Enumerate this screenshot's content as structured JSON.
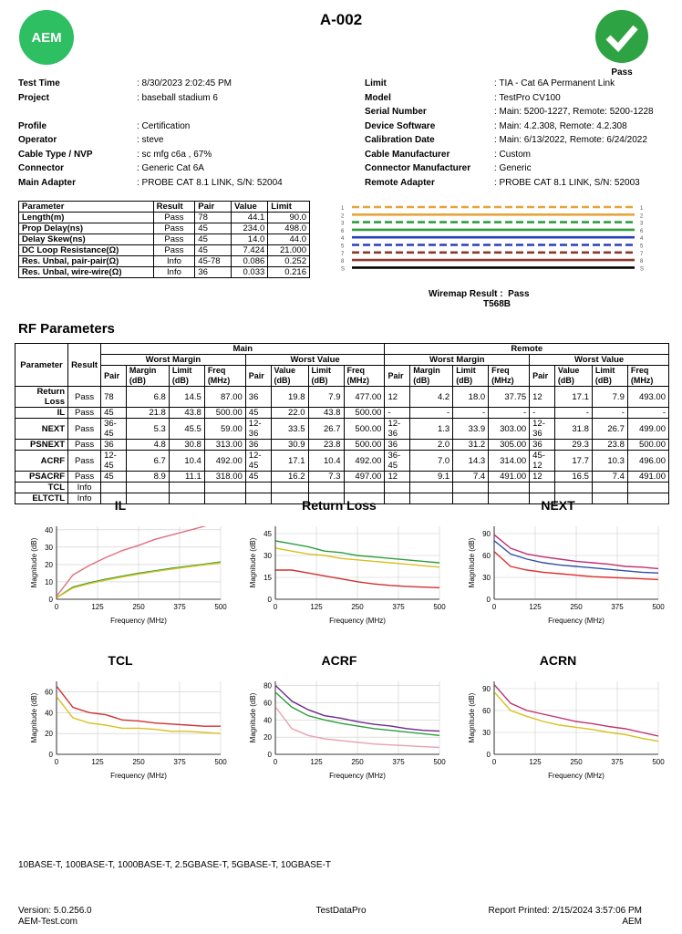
{
  "header": {
    "logo": "AEM",
    "title": "A-002",
    "status": "Pass"
  },
  "info_left": [
    [
      "Test Time",
      ": 8/30/2023 2:02:45 PM"
    ],
    [
      "Project",
      ": baseball stadium 6"
    ],
    [
      "Profile",
      ": Certification"
    ],
    [
      "Operator",
      ": steve"
    ],
    [
      "Cable Type / NVP",
      ": sc mfg c6a , 67%"
    ],
    [
      "Connector",
      ": Generic Cat 6A"
    ],
    [
      "Main Adapter",
      ": PROBE CAT 8.1 LINK, S/N: 52004"
    ]
  ],
  "info_right": [
    [
      "Limit",
      ": TIA - Cat 6A Permanent Link"
    ],
    [
      "Model",
      ": TestPro CV100"
    ],
    [
      "Serial Number",
      ": Main: 5200-1227, Remote: 5200-1228"
    ],
    [
      "Device Software",
      ": Main: 4.2.308, Remote: 4.2.308"
    ],
    [
      "Calibration Date",
      ": Main: 6/13/2022, Remote: 6/24/2022"
    ],
    [
      "Cable Manufacturer",
      ": Custom"
    ],
    [
      "Connector Manufacturer",
      ": Generic"
    ],
    [
      "Remote Adapter",
      ": PROBE CAT 8.1 LINK, S/N: 52003"
    ]
  ],
  "param_table": {
    "headers": [
      "Parameter",
      "Result",
      "Pair",
      "Value",
      "Limit"
    ],
    "rows": [
      [
        "Length(m)",
        "Pass",
        "78",
        "44.1",
        "90.0"
      ],
      [
        "Prop Delay(ns)",
        "Pass",
        "45",
        "234.0",
        "498.0"
      ],
      [
        "Delay Skew(ns)",
        "Pass",
        "45",
        "14.0",
        "44.0"
      ],
      [
        "DC Loop Resistance(Ω)",
        "Pass",
        "45",
        "7.424",
        "21.000"
      ],
      [
        "Res. Unbal, pair-pair(Ω)",
        "Info",
        "45-78",
        "0.086",
        "0.252"
      ],
      [
        "Res. Unbal, wire-wire(Ω)",
        "Info",
        "36",
        "0.033",
        "0.216"
      ]
    ]
  },
  "wiremap": {
    "pins": [
      "1",
      "2",
      "3",
      "6",
      "4",
      "5",
      "7",
      "8",
      "S"
    ],
    "result_label": "Wiremap Result :",
    "result": "Pass",
    "standard": "T568B"
  },
  "rf": {
    "title": "RF Parameters",
    "parameter": "Parameter",
    "result": "Result",
    "groups": [
      "Main",
      "Remote"
    ],
    "subgroups": [
      "Worst Margin",
      "Worst Value"
    ],
    "margin_cols": [
      "Pair",
      "Margin (dB)",
      "Limit (dB)",
      "Freq (MHz)"
    ],
    "value_cols": [
      "Pair",
      "Value (dB)",
      "Limit (dB)",
      "Freq (MHz)"
    ],
    "rows": [
      [
        "Return Loss",
        "Pass",
        "78",
        "6.8",
        "14.5",
        "87.00",
        "36",
        "19.8",
        "7.9",
        "477.00",
        "12",
        "4.2",
        "18.0",
        "37.75",
        "12",
        "17.1",
        "7.9",
        "493.00"
      ],
      [
        "IL",
        "Pass",
        "45",
        "21.8",
        "43.8",
        "500.00",
        "45",
        "22.0",
        "43.8",
        "500.00",
        "-",
        "-",
        "-",
        "-",
        "-",
        "-",
        "-",
        "-"
      ],
      [
        "NEXT",
        "Pass",
        "36-45",
        "5.3",
        "45.5",
        "59.00",
        "12-36",
        "33.5",
        "26.7",
        "500.00",
        "12-36",
        "1.3",
        "33.9",
        "303.00",
        "12-36",
        "31.8",
        "26.7",
        "499.00"
      ],
      [
        "PSNEXT",
        "Pass",
        "36",
        "4.8",
        "30.8",
        "313.00",
        "36",
        "30.9",
        "23.8",
        "500.00",
        "36",
        "2.0",
        "31.2",
        "305.00",
        "36",
        "29.3",
        "23.8",
        "500.00"
      ],
      [
        "ACRF",
        "Pass",
        "12-45",
        "6.7",
        "10.4",
        "492.00",
        "12-45",
        "17.1",
        "10.4",
        "492.00",
        "36-45",
        "7.0",
        "14.3",
        "314.00",
        "45-12",
        "17.7",
        "10.3",
        "496.00"
      ],
      [
        "PSACRF",
        "Pass",
        "45",
        "8.9",
        "11.1",
        "318.00",
        "45",
        "16.2",
        "7.3",
        "497.00",
        "12",
        "9.1",
        "7.4",
        "491.00",
        "12",
        "16.5",
        "7.4",
        "491.00"
      ],
      [
        "TCL",
        "Info",
        null,
        null,
        null,
        null,
        null,
        null,
        null,
        null,
        null,
        null,
        null,
        null,
        null,
        null,
        null,
        null
      ],
      [
        "ELTCTL",
        "Info",
        null,
        null,
        null,
        null,
        null,
        null,
        null,
        null,
        null,
        null,
        null,
        null,
        null,
        null,
        null,
        null
      ]
    ]
  },
  "chart_data": [
    {
      "type": "line",
      "title": "IL",
      "x_label": "Frequency (MHz)",
      "y_label": "Magnitude (dB)",
      "xlim": [
        0,
        500
      ],
      "ylim": [
        0,
        42
      ],
      "xticks": [
        0,
        125,
        250,
        375,
        500
      ],
      "yticks": [
        0,
        10,
        20,
        30,
        40
      ],
      "grid": true,
      "x": [
        1,
        50,
        100,
        150,
        200,
        250,
        300,
        350,
        400,
        450,
        500
      ],
      "series": [
        {
          "color": "#e07080",
          "values": [
            2,
            14,
            19.5,
            24,
            28,
            31,
            34.5,
            37,
            39.5,
            42,
            44
          ]
        },
        {
          "color": "#2e9e3e",
          "values": [
            1,
            7,
            9.5,
            11.5,
            13.3,
            15,
            16.4,
            17.8,
            19,
            20.2,
            21.5
          ]
        },
        {
          "color": "#d8c020",
          "values": [
            1,
            6.5,
            9,
            11,
            12.8,
            14.5,
            16,
            17.3,
            18.6,
            19.8,
            21
          ]
        }
      ]
    },
    {
      "type": "line",
      "title": "Return Loss",
      "x_label": "Frequency (MHz)",
      "y_label": "Magnitude (dB)",
      "xlim": [
        0,
        500
      ],
      "ylim": [
        0,
        50
      ],
      "xticks": [
        0,
        125,
        250,
        375,
        500
      ],
      "yticks": [
        0,
        15,
        30,
        45
      ],
      "grid": true,
      "x": [
        1,
        50,
        100,
        150,
        200,
        250,
        300,
        350,
        400,
        450,
        500
      ],
      "series": [
        {
          "color": "#2e9e3e",
          "values": [
            40,
            38,
            36,
            33,
            32,
            30,
            29,
            28,
            27,
            26,
            25
          ]
        },
        {
          "color": "#d8c020",
          "values": [
            35,
            33,
            31,
            30,
            28,
            27,
            26,
            25,
            24,
            23,
            22
          ]
        },
        {
          "color": "#d03030",
          "values": [
            20,
            20,
            18,
            16,
            14,
            12,
            10.5,
            9.5,
            8.8,
            8.3,
            7.9
          ]
        }
      ]
    },
    {
      "type": "line",
      "title": "NEXT",
      "x_label": "Frequency (MHz)",
      "y_label": "Magnitude (dB)",
      "xlim": [
        0,
        500
      ],
      "ylim": [
        0,
        100
      ],
      "xticks": [
        0,
        125,
        250,
        375,
        500
      ],
      "yticks": [
        0,
        30,
        60,
        90
      ],
      "grid": true,
      "x": [
        1,
        50,
        100,
        150,
        200,
        250,
        300,
        350,
        400,
        450,
        500
      ],
      "series": [
        {
          "color": "#c03070",
          "values": [
            88,
            70,
            62,
            58,
            55,
            52,
            50,
            48,
            45,
            44,
            42
          ]
        },
        {
          "color": "#3050a0",
          "values": [
            80,
            62,
            55,
            50,
            47,
            45,
            43,
            41,
            39,
            37,
            36
          ]
        },
        {
          "color": "#e03030",
          "values": [
            65,
            45,
            40,
            37,
            35,
            33,
            31,
            30,
            29,
            28,
            27
          ]
        }
      ]
    },
    {
      "type": "line",
      "title": "TCL",
      "x_label": "Frequency (MHz)",
      "y_label": "Magnitude (dB)",
      "xlim": [
        0,
        500
      ],
      "ylim": [
        0,
        70
      ],
      "xticks": [
        0,
        125,
        250,
        375,
        500
      ],
      "yticks": [
        0,
        20,
        40,
        60
      ],
      "grid": true,
      "x": [
        1,
        50,
        100,
        150,
        200,
        250,
        300,
        350,
        400,
        450,
        500
      ],
      "series": [
        {
          "color": "#d03030",
          "values": [
            65,
            45,
            40,
            38,
            33,
            32,
            30,
            29,
            28,
            27,
            27
          ]
        },
        {
          "color": "#d8c020",
          "values": [
            55,
            35,
            30,
            28,
            25,
            25,
            24,
            22,
            22,
            21,
            20
          ]
        }
      ]
    },
    {
      "type": "line",
      "title": "ACRF",
      "x_label": "Frequency (MHz)",
      "y_label": "Magnitude (dB)",
      "xlim": [
        0,
        500
      ],
      "ylim": [
        0,
        85
      ],
      "xticks": [
        0,
        125,
        250,
        375,
        500
      ],
      "yticks": [
        0,
        20,
        40,
        60,
        80
      ],
      "grid": true,
      "x": [
        1,
        50,
        100,
        150,
        200,
        250,
        300,
        350,
        400,
        450,
        500
      ],
      "series": [
        {
          "color": "#6a2a8a",
          "values": [
            80,
            62,
            52,
            45,
            42,
            38,
            35,
            33,
            30,
            28,
            27
          ]
        },
        {
          "color": "#2e9e3e",
          "values": [
            72,
            55,
            45,
            40,
            36,
            33,
            30,
            28,
            26,
            24,
            22
          ]
        },
        {
          "color": "#e8a0b0",
          "values": [
            55,
            30,
            22,
            18,
            16,
            14,
            12,
            11,
            10,
            9,
            8
          ]
        }
      ]
    },
    {
      "type": "line",
      "title": "ACRN",
      "x_label": "Frequency (MHz)",
      "y_label": "Magnitude (dB)",
      "xlim": [
        0,
        500
      ],
      "ylim": [
        0,
        100
      ],
      "xticks": [
        0,
        125,
        250,
        375,
        500
      ],
      "yticks": [
        0,
        30,
        60,
        90
      ],
      "grid": true,
      "x": [
        1,
        50,
        100,
        150,
        200,
        250,
        300,
        350,
        400,
        450,
        500
      ],
      "series": [
        {
          "color": "#c03070",
          "values": [
            95,
            70,
            60,
            55,
            50,
            45,
            42,
            38,
            35,
            30,
            25
          ]
        },
        {
          "color": "#d8c020",
          "values": [
            85,
            60,
            52,
            45,
            40,
            37,
            34,
            30,
            27,
            22,
            18
          ]
        }
      ]
    }
  ],
  "footer": {
    "applications": "10BASE-T, 100BASE-T, 1000BASE-T, 2.5GBASE-T, 5GBASE-T, 10GBASE-T",
    "version": "Version: 5.0.256.0",
    "site": "AEM-Test.com",
    "product": "TestDataPro",
    "printed": "Report Printed: 2/15/2024 3:57:06 PM",
    "company": "AEM"
  }
}
